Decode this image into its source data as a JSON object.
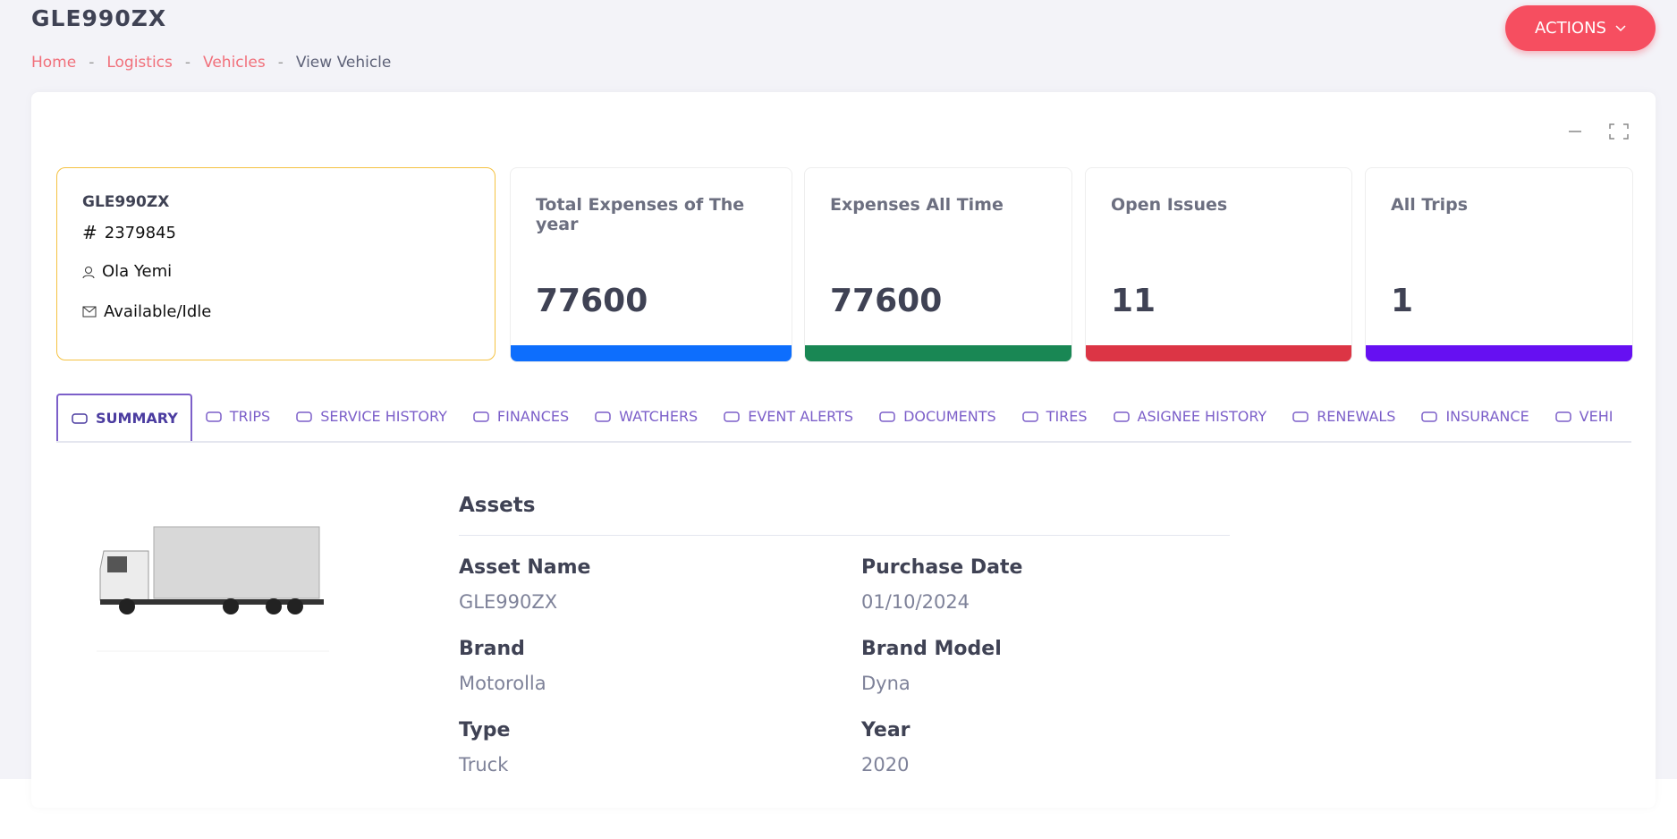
{
  "header": {
    "title": "GLE990ZX",
    "breadcrumb": [
      "Home",
      "Logistics",
      "Vehicles",
      "View Vehicle"
    ],
    "actions": "ACTIONS"
  },
  "info": {
    "name": "GLE990ZX",
    "id": "2379845",
    "owner": "Ola Yemi",
    "status": "Available/Idle"
  },
  "stats": [
    {
      "label": "Total Expenses of The year",
      "value": 77600
    },
    {
      "label": "Expenses All Time",
      "value": 77600
    },
    {
      "label": "Open Issues",
      "value": 11
    },
    {
      "label": "All Trips",
      "value": 1
    }
  ],
  "tabs": [
    "SUMMARY",
    "TRIPS",
    "SERVICE HISTORY",
    "FINANCES",
    "WATCHERS",
    "EVENT ALERTS",
    "DOCUMENTS",
    "TIRES",
    "ASIGNEE HISTORY",
    "RENEWALS",
    "INSURANCE",
    "VEHI"
  ],
  "assets": {
    "title": "Assets",
    "fields": [
      {
        "label": "Asset Name",
        "value": "GLE990ZX"
      },
      {
        "label": "Purchase Date",
        "value": "01/10/2024"
      },
      {
        "label": "Brand",
        "value": "Motorolla"
      },
      {
        "label": "Brand Model",
        "value": "Dyna"
      },
      {
        "label": "Type",
        "value": "Truck"
      },
      {
        "label": "Year",
        "value": "2020"
      }
    ]
  }
}
